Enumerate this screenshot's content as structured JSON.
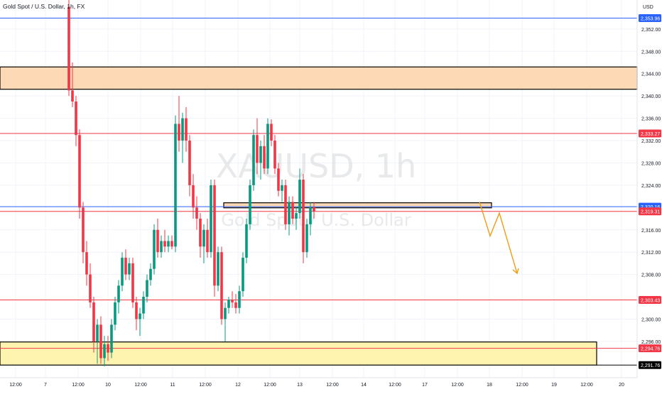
{
  "header": {
    "title": "Gold Spot / U.S. Dollar, 1h, FX"
  },
  "currency_label": "USD",
  "watermark": {
    "symbol": "XAUUSD, 1h",
    "description": "Gold Spot / U.S. Dollar"
  },
  "chart_data": {
    "type": "candlestick",
    "price_axis": {
      "ylim": [
        2289.5,
        2357.2
      ],
      "ticks": [
        "2,352.00",
        "2,348.00",
        "2,344.00",
        "2,340.00",
        "2,336.00",
        "2,332.00",
        "2,328.00",
        "2,324.00",
        "2,316.00",
        "2,312.00",
        "2,308.00",
        "2,300.00",
        "2,296.00"
      ],
      "tick_values": [
        2352,
        2348,
        2344,
        2340,
        2336,
        2332,
        2328,
        2324,
        2316,
        2312,
        2308,
        2300,
        2296
      ]
    },
    "time_axis": {
      "labels": [
        "12:00",
        "7",
        "12:00",
        "10",
        "12:00",
        "11",
        "12:00",
        "12",
        "12:00",
        "13",
        "12:00",
        "14",
        "12:00",
        "17",
        "12:00",
        "18",
        "12:00",
        "19",
        "12:00",
        "20"
      ]
    },
    "horizontal_lines": [
      {
        "price": 2353.96,
        "label": "2,353.96",
        "color": "#2962ff"
      },
      {
        "price": 2333.27,
        "label": "2,333.27",
        "color": "#f23645"
      },
      {
        "price": 2320.16,
        "label": "2,320.16",
        "color": "#2962ff"
      },
      {
        "price": 2319.31,
        "label": "2,319.31",
        "color": "#f23645"
      },
      {
        "price": 2303.43,
        "label": "2,303.43",
        "color": "#f23645"
      },
      {
        "price": 2294.76,
        "label": "2,294.76",
        "color": "#f23645"
      },
      {
        "price": 2291.76,
        "label": "2,291.76",
        "color": "#000000"
      }
    ],
    "zones": [
      {
        "name": "supply-zone",
        "from_price": 2341.2,
        "to_price": 2345.2,
        "color": "#fdd9b5"
      },
      {
        "name": "retest-zone",
        "from_price": 2319.95,
        "to_price": 2320.85,
        "color": "#fdd9b5"
      },
      {
        "name": "demand-zone",
        "from_price": 2291.76,
        "to_price": 2295.9,
        "color": "#fff3b0"
      }
    ],
    "projection_path_prices": [
      2321.0,
      2318.2,
      2314.9,
      2319.0,
      2308.2
    ],
    "candles": [
      {
        "o": 2356.0,
        "h": 2362.0,
        "l": 2340.0,
        "c": 2341.0
      },
      {
        "o": 2341.0,
        "h": 2346.0,
        "l": 2338.0,
        "c": 2339.0
      },
      {
        "o": 2339.0,
        "h": 2340.0,
        "l": 2331.0,
        "c": 2333.0
      },
      {
        "o": 2333.0,
        "h": 2334.0,
        "l": 2318.0,
        "c": 2320.0
      },
      {
        "o": 2320.0,
        "h": 2321.0,
        "l": 2310.0,
        "c": 2312.0
      },
      {
        "o": 2312.0,
        "h": 2314.0,
        "l": 2306.0,
        "c": 2308.0
      },
      {
        "o": 2308.0,
        "h": 2310.0,
        "l": 2302.0,
        "c": 2303.0
      },
      {
        "o": 2303.0,
        "h": 2304.0,
        "l": 2294.0,
        "c": 2296.0
      },
      {
        "o": 2296.0,
        "h": 2300.0,
        "l": 2292.0,
        "c": 2299.0
      },
      {
        "o": 2299.0,
        "h": 2300.5,
        "l": 2292.0,
        "c": 2293.0
      },
      {
        "o": 2293.0,
        "h": 2297.0,
        "l": 2291.5,
        "c": 2295.5
      },
      {
        "o": 2295.5,
        "h": 2297.0,
        "l": 2292.5,
        "c": 2294.0
      },
      {
        "o": 2294.0,
        "h": 2300.0,
        "l": 2293.0,
        "c": 2299.0
      },
      {
        "o": 2299.0,
        "h": 2304.0,
        "l": 2298.0,
        "c": 2303.0
      },
      {
        "o": 2303.0,
        "h": 2307.0,
        "l": 2301.0,
        "c": 2306.0
      },
      {
        "o": 2306.0,
        "h": 2312.0,
        "l": 2305.0,
        "c": 2311.0
      },
      {
        "o": 2311.0,
        "h": 2312.5,
        "l": 2307.0,
        "c": 2308.0
      },
      {
        "o": 2308.0,
        "h": 2311.0,
        "l": 2307.0,
        "c": 2310.0
      },
      {
        "o": 2310.0,
        "h": 2311.0,
        "l": 2302.0,
        "c": 2303.0
      },
      {
        "o": 2303.0,
        "h": 2304.0,
        "l": 2298.0,
        "c": 2300.0
      },
      {
        "o": 2300.0,
        "h": 2302.0,
        "l": 2297.0,
        "c": 2301.0
      },
      {
        "o": 2301.0,
        "h": 2305.0,
        "l": 2300.0,
        "c": 2304.0
      },
      {
        "o": 2304.0,
        "h": 2308.0,
        "l": 2303.0,
        "c": 2307.0
      },
      {
        "o": 2307.0,
        "h": 2310.0,
        "l": 2306.0,
        "c": 2309.0
      },
      {
        "o": 2309.0,
        "h": 2317.0,
        "l": 2308.0,
        "c": 2316.0
      },
      {
        "o": 2316.0,
        "h": 2318.0,
        "l": 2311.0,
        "c": 2312.0
      },
      {
        "o": 2312.0,
        "h": 2315.0,
        "l": 2311.0,
        "c": 2314.0
      },
      {
        "o": 2314.0,
        "h": 2316.0,
        "l": 2312.0,
        "c": 2313.0
      },
      {
        "o": 2313.0,
        "h": 2315.0,
        "l": 2312.0,
        "c": 2314.0
      },
      {
        "o": 2314.0,
        "h": 2315.0,
        "l": 2312.5,
        "c": 2313.0
      },
      {
        "o": 2313.0,
        "h": 2336.5,
        "l": 2312.0,
        "c": 2335.0
      },
      {
        "o": 2335.0,
        "h": 2340.0,
        "l": 2330.0,
        "c": 2332.0
      },
      {
        "o": 2332.0,
        "h": 2337.0,
        "l": 2328.0,
        "c": 2336.0
      },
      {
        "o": 2336.0,
        "h": 2338.0,
        "l": 2330.0,
        "c": 2332.0
      },
      {
        "o": 2332.0,
        "h": 2333.0,
        "l": 2322.0,
        "c": 2324.0
      },
      {
        "o": 2324.0,
        "h": 2326.0,
        "l": 2318.0,
        "c": 2320.0
      },
      {
        "o": 2320.0,
        "h": 2322.0,
        "l": 2316.0,
        "c": 2318.0
      },
      {
        "o": 2318.0,
        "h": 2319.0,
        "l": 2311.0,
        "c": 2313.0
      },
      {
        "o": 2313.0,
        "h": 2317.0,
        "l": 2310.0,
        "c": 2316.0
      },
      {
        "o": 2316.0,
        "h": 2318.0,
        "l": 2311.0,
        "c": 2312.0
      },
      {
        "o": 2312.0,
        "h": 2325.0,
        "l": 2311.0,
        "c": 2324.0
      },
      {
        "o": 2324.0,
        "h": 2325.0,
        "l": 2304.0,
        "c": 2306.0
      },
      {
        "o": 2306.0,
        "h": 2313.0,
        "l": 2305.0,
        "c": 2312.0
      },
      {
        "o": 2312.0,
        "h": 2313.0,
        "l": 2299.0,
        "c": 2300.0
      },
      {
        "o": 2300.0,
        "h": 2303.0,
        "l": 2296.0,
        "c": 2302.0
      },
      {
        "o": 2302.0,
        "h": 2304.0,
        "l": 2301.0,
        "c": 2303.5
      },
      {
        "o": 2303.5,
        "h": 2305.0,
        "l": 2302.0,
        "c": 2303.0
      },
      {
        "o": 2303.0,
        "h": 2304.5,
        "l": 2301.0,
        "c": 2302.0
      },
      {
        "o": 2302.0,
        "h": 2306.0,
        "l": 2301.0,
        "c": 2305.0
      },
      {
        "o": 2305.0,
        "h": 2312.0,
        "l": 2304.0,
        "c": 2311.0
      },
      {
        "o": 2311.0,
        "h": 2318.0,
        "l": 2310.0,
        "c": 2317.0
      },
      {
        "o": 2317.0,
        "h": 2325.0,
        "l": 2316.0,
        "c": 2324.0
      },
      {
        "o": 2324.0,
        "h": 2334.0,
        "l": 2323.0,
        "c": 2333.0
      },
      {
        "o": 2333.0,
        "h": 2336.0,
        "l": 2326.0,
        "c": 2328.0
      },
      {
        "o": 2328.0,
        "h": 2332.0,
        "l": 2325.0,
        "c": 2331.0
      },
      {
        "o": 2331.0,
        "h": 2333.0,
        "l": 2326.0,
        "c": 2327.0
      },
      {
        "o": 2327.0,
        "h": 2336.0,
        "l": 2326.0,
        "c": 2335.0
      },
      {
        "o": 2335.0,
        "h": 2335.8,
        "l": 2331.0,
        "c": 2332.0
      },
      {
        "o": 2332.0,
        "h": 2333.0,
        "l": 2326.0,
        "c": 2327.0
      },
      {
        "o": 2327.0,
        "h": 2328.0,
        "l": 2322.0,
        "c": 2323.0
      },
      {
        "o": 2323.0,
        "h": 2325.0,
        "l": 2321.0,
        "c": 2324.0
      },
      {
        "o": 2324.0,
        "h": 2325.0,
        "l": 2316.0,
        "c": 2317.0
      },
      {
        "o": 2317.0,
        "h": 2322.0,
        "l": 2315.0,
        "c": 2321.0
      },
      {
        "o": 2321.0,
        "h": 2322.0,
        "l": 2317.0,
        "c": 2318.0
      },
      {
        "o": 2318.0,
        "h": 2320.0,
        "l": 2316.0,
        "c": 2319.0
      },
      {
        "o": 2319.0,
        "h": 2327.0,
        "l": 2318.0,
        "c": 2325.0
      },
      {
        "o": 2325.0,
        "h": 2326.0,
        "l": 2310.0,
        "c": 2312.0
      },
      {
        "o": 2312.0,
        "h": 2318.0,
        "l": 2311.0,
        "c": 2317.0
      },
      {
        "o": 2317.0,
        "h": 2321.0,
        "l": 2315.0,
        "c": 2320.0
      },
      {
        "o": 2320.0,
        "h": 2321.0,
        "l": 2318.0,
        "c": 2319.3
      }
    ]
  }
}
